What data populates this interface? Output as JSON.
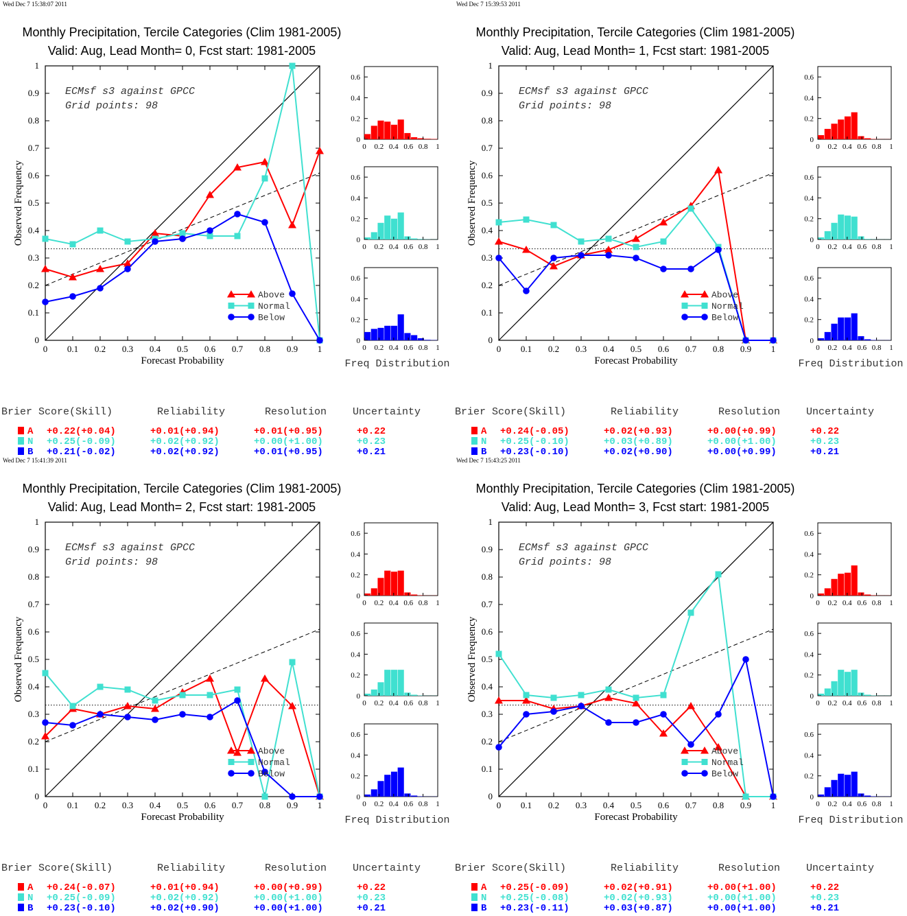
{
  "colors": {
    "above": "#ff0000",
    "normal": "#40e0d0",
    "below": "#0000ff"
  },
  "common": {
    "title_line1": "Monthly Precipitation, Tercile Categories (Clim 1981-2005)",
    "xlabel": "Forecast Probability",
    "ylabel": "Observed Frequency",
    "info_line1": "ECMsf s3 against GPCC",
    "info_line2": "Grid points:   98",
    "legend": [
      "Above",
      "Normal",
      "Below"
    ],
    "hist_xlabel": "Freq Distribution",
    "brier_headers": [
      "Brier Score(Skill)",
      "Reliability",
      "Resolution",
      "Uncertainty"
    ],
    "cat_letters": [
      "A",
      "N",
      "B"
    ]
  },
  "chart_data": [
    {
      "type": "line",
      "stamp": "Wed Dec  7 15:38:07 2011",
      "title_line2": "Valid: Aug, Lead Month= 0, Fcst start: 1981-2005",
      "x": [
        0,
        0.1,
        0.2,
        0.3,
        0.4,
        0.5,
        0.6,
        0.7,
        0.8,
        0.9,
        1
      ],
      "xlim": [
        0,
        1
      ],
      "ylim": [
        0,
        1
      ],
      "series": [
        {
          "name": "Above",
          "values": [
            0.26,
            0.23,
            0.26,
            0.28,
            0.39,
            0.38,
            0.53,
            0.63,
            0.65,
            0.42,
            0.69
          ]
        },
        {
          "name": "Normal",
          "values": [
            0.37,
            0.35,
            0.4,
            0.36,
            0.37,
            0.39,
            0.38,
            0.38,
            0.59,
            1.0,
            0.0
          ]
        },
        {
          "name": "Below",
          "values": [
            0.14,
            0.16,
            0.19,
            0.26,
            0.36,
            0.37,
            0.4,
            0.46,
            0.43,
            0.17,
            0.0
          ]
        }
      ],
      "hist": [
        [
          0.05,
          0.13,
          0.18,
          0.17,
          0.14,
          0.19,
          0.06,
          0.02,
          0.01,
          0.005,
          0.003
        ],
        [
          0.02,
          0.07,
          0.16,
          0.23,
          0.2,
          0.26,
          0.03,
          0.01,
          0.005,
          0.002,
          0.001
        ],
        [
          0.08,
          0.11,
          0.12,
          0.14,
          0.14,
          0.25,
          0.07,
          0.05,
          0.02,
          0.005,
          0.002
        ]
      ],
      "brier": [
        [
          "+0.22(+0.04)",
          "+0.01(+0.94)",
          "+0.01(+0.95)",
          "+0.22"
        ],
        [
          "+0.25(-0.09)",
          "+0.02(+0.92)",
          "+0.00(+1.00)",
          "+0.23"
        ],
        [
          "+0.21(-0.02)",
          "+0.02(+0.92)",
          "+0.01(+0.95)",
          "+0.21"
        ]
      ]
    },
    {
      "type": "line",
      "stamp": "Wed Dec  7 15:39:53 2011",
      "title_line2": "Valid: Aug, Lead Month= 1, Fcst start: 1981-2005",
      "x": [
        0,
        0.1,
        0.2,
        0.3,
        0.4,
        0.5,
        0.6,
        0.7,
        0.8,
        0.9,
        1
      ],
      "xlim": [
        0,
        1
      ],
      "ylim": [
        0,
        1
      ],
      "series": [
        {
          "name": "Above",
          "values": [
            0.36,
            0.33,
            0.27,
            0.31,
            0.33,
            0.37,
            0.43,
            0.49,
            0.62,
            0.0,
            0.0
          ]
        },
        {
          "name": "Normal",
          "values": [
            0.43,
            0.44,
            0.42,
            0.36,
            0.37,
            0.34,
            0.36,
            0.48,
            0.34,
            0.0,
            0.0
          ]
        },
        {
          "name": "Below",
          "values": [
            0.3,
            0.18,
            0.3,
            0.31,
            0.31,
            0.3,
            0.26,
            0.26,
            0.33,
            0.0,
            0.0
          ]
        }
      ],
      "hist": [
        [
          0.04,
          0.1,
          0.15,
          0.19,
          0.22,
          0.26,
          0.03,
          0.01,
          0.003,
          0.001,
          0.001
        ],
        [
          0.02,
          0.08,
          0.16,
          0.24,
          0.23,
          0.22,
          0.03,
          0.005,
          0.002,
          0.001,
          0.001
        ],
        [
          0.02,
          0.08,
          0.16,
          0.22,
          0.22,
          0.26,
          0.04,
          0.01,
          0.003,
          0.001,
          0.001
        ]
      ],
      "brier": [
        [
          "+0.24(-0.05)",
          "+0.02(+0.93)",
          "+0.00(+0.99)",
          "+0.22"
        ],
        [
          "+0.25(-0.10)",
          "+0.03(+0.89)",
          "+0.00(+1.00)",
          "+0.23"
        ],
        [
          "+0.23(-0.10)",
          "+0.02(+0.90)",
          "+0.00(+0.99)",
          "+0.21"
        ]
      ]
    },
    {
      "type": "line",
      "stamp": "Wed Dec  7 15:41:39 2011",
      "title_line2": "Valid: Aug, Lead Month= 2, Fcst start: 1981-2005",
      "x": [
        0,
        0.1,
        0.2,
        0.3,
        0.4,
        0.5,
        0.6,
        0.7,
        0.8,
        0.9,
        1
      ],
      "xlim": [
        0,
        1
      ],
      "ylim": [
        0,
        1
      ],
      "series": [
        {
          "name": "Above",
          "values": [
            0.22,
            0.32,
            0.3,
            0.33,
            0.32,
            0.38,
            0.43,
            0.16,
            0.43,
            0.33,
            0.0
          ]
        },
        {
          "name": "Normal",
          "values": [
            0.45,
            0.33,
            0.4,
            0.39,
            0.35,
            0.37,
            0.37,
            0.39,
            0.0,
            0.49,
            0.0
          ]
        },
        {
          "name": "Below",
          "values": [
            0.27,
            0.26,
            0.3,
            0.29,
            0.28,
            0.3,
            0.29,
            0.35,
            0.09,
            0.0,
            0.0
          ]
        }
      ],
      "hist": [
        [
          0.02,
          0.07,
          0.17,
          0.24,
          0.23,
          0.24,
          0.03,
          0.01,
          0.003,
          0.001,
          0.001
        ],
        [
          0.02,
          0.06,
          0.13,
          0.25,
          0.25,
          0.25,
          0.03,
          0.01,
          0.003,
          0.001,
          0.001
        ],
        [
          0.02,
          0.07,
          0.15,
          0.21,
          0.24,
          0.28,
          0.03,
          0.01,
          0.003,
          0.001,
          0.001
        ]
      ],
      "brier": [
        [
          "+0.24(-0.07)",
          "+0.01(+0.94)",
          "+0.00(+0.99)",
          "+0.22"
        ],
        [
          "+0.25(-0.09)",
          "+0.02(+0.92)",
          "+0.00(+1.00)",
          "+0.23"
        ],
        [
          "+0.23(-0.10)",
          "+0.02(+0.90)",
          "+0.00(+1.00)",
          "+0.21"
        ]
      ]
    },
    {
      "type": "line",
      "stamp": "Wed Dec  7 15:43:25 2011",
      "title_line2": "Valid: Aug, Lead Month= 3, Fcst start: 1981-2005",
      "x": [
        0,
        0.1,
        0.2,
        0.3,
        0.4,
        0.5,
        0.6,
        0.7,
        0.8,
        0.9,
        1
      ],
      "xlim": [
        0,
        1
      ],
      "ylim": [
        0,
        1
      ],
      "series": [
        {
          "name": "Above",
          "values": [
            0.35,
            0.35,
            0.32,
            0.33,
            0.36,
            0.34,
            0.23,
            0.33,
            0.18,
            0.0,
            0.0
          ]
        },
        {
          "name": "Normal",
          "values": [
            0.52,
            0.37,
            0.36,
            0.37,
            0.39,
            0.36,
            0.37,
            0.67,
            0.81,
            0.0,
            0.0
          ]
        },
        {
          "name": "Below",
          "values": [
            0.18,
            0.3,
            0.31,
            0.33,
            0.27,
            0.27,
            0.3,
            0.19,
            0.3,
            0.5,
            0.0
          ]
        }
      ],
      "hist": [
        [
          0.02,
          0.07,
          0.16,
          0.21,
          0.22,
          0.29,
          0.03,
          0.01,
          0.003,
          0.001,
          0.001
        ],
        [
          0.02,
          0.07,
          0.14,
          0.25,
          0.23,
          0.25,
          0.03,
          0.01,
          0.003,
          0.001,
          0.001
        ],
        [
          0.02,
          0.09,
          0.16,
          0.22,
          0.21,
          0.24,
          0.03,
          0.01,
          0.003,
          0.001,
          0.001
        ]
      ],
      "brier": [
        [
          "+0.25(-0.09)",
          "+0.02(+0.91)",
          "+0.00(+1.00)",
          "+0.22"
        ],
        [
          "+0.25(-0.08)",
          "+0.02(+0.93)",
          "+0.00(+1.00)",
          "+0.23"
        ],
        [
          "+0.23(-0.11)",
          "+0.03(+0.87)",
          "+0.00(+1.00)",
          "+0.21"
        ]
      ]
    }
  ]
}
